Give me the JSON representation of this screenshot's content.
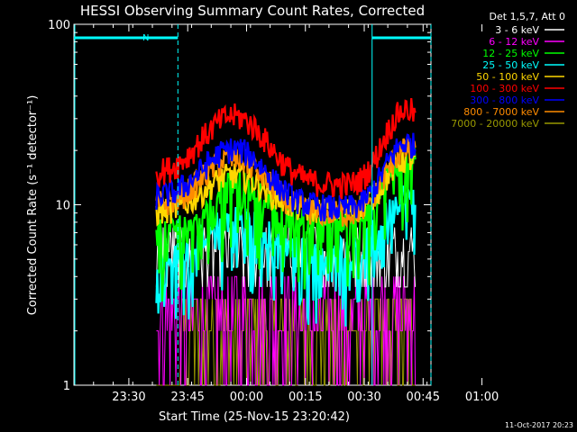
{
  "chart_data": {
    "type": "line",
    "title": "HESSI Observing Summary Count Rates, Corrected",
    "xlabel": "Start Time (25-Nov-15 23:20:42)",
    "ylabel": "Corrected Count Rate (s⁻¹ detector⁻¹)",
    "y_scale": "log",
    "ylim": [
      1,
      100
    ],
    "y_ticks": [
      {
        "value": 1,
        "label": "1"
      },
      {
        "value": 10,
        "label": "10"
      },
      {
        "value": 100,
        "label": "100"
      }
    ],
    "x_range_minutes": [
      -7,
      84
    ],
    "x_ticks": [
      {
        "label": "23:30",
        "minutes": 7
      },
      {
        "label": "23:45",
        "minutes": 22
      },
      {
        "label": "00:00",
        "minutes": 37
      },
      {
        "label": "00:15",
        "minutes": 52
      },
      {
        "label": "00:30",
        "minutes": 67
      },
      {
        "label": "00:45",
        "minutes": 82
      },
      {
        "label": "01:00",
        "minutes": 97
      }
    ],
    "legend_title": "Det 1,5,7, Att 0",
    "legend_position": "outside-right-top",
    "series": [
      {
        "name": "3 - 6 keV",
        "color": "#ffffff",
        "base": [
          3.5,
          6.5
        ],
        "amp": 0
      },
      {
        "name": "6 - 12 keV",
        "color": "#ff00ff",
        "base": [
          2,
          3.5
        ],
        "amp": 0
      },
      {
        "name": "12 - 25 keV",
        "color": "#00ff00",
        "base": [
          7,
          9
        ],
        "amp": 0.6
      },
      {
        "name": "25 - 50 keV",
        "color": "#00ffff",
        "base": [
          5,
          6
        ],
        "amp": 0.5
      },
      {
        "name": "50 - 100 keV",
        "color": "#ffd700",
        "base": [
          9,
          9.5
        ],
        "amp": 0.5
      },
      {
        "name": "100 - 300 keV",
        "color": "#ff0000",
        "base": [
          15,
          12
        ],
        "amp": 1
      },
      {
        "name": "300 - 800 keV",
        "color": "#0000ff",
        "base": [
          11,
          9
        ],
        "amp": 0.8
      },
      {
        "name": "800 - 7000 keV",
        "color": "#ff8c00",
        "base": [
          10,
          8.5
        ],
        "amp": 0.75
      },
      {
        "name": "7000 - 20000 keV",
        "color": "#999900",
        "base": [
          1.3,
          2.5
        ],
        "amp": 0
      }
    ],
    "data_start_minutes": 14,
    "data_end_minutes": 80,
    "attenuator_label": "N",
    "night_bars": [
      {
        "from_minutes": -7,
        "to_minutes": 19.5
      },
      {
        "from_minutes": 69,
        "to_minutes": 84
      }
    ],
    "vertical_markers_minutes": [
      19.5,
      69,
      84
    ],
    "timestamp": "11-Oct-2017 20:23"
  }
}
